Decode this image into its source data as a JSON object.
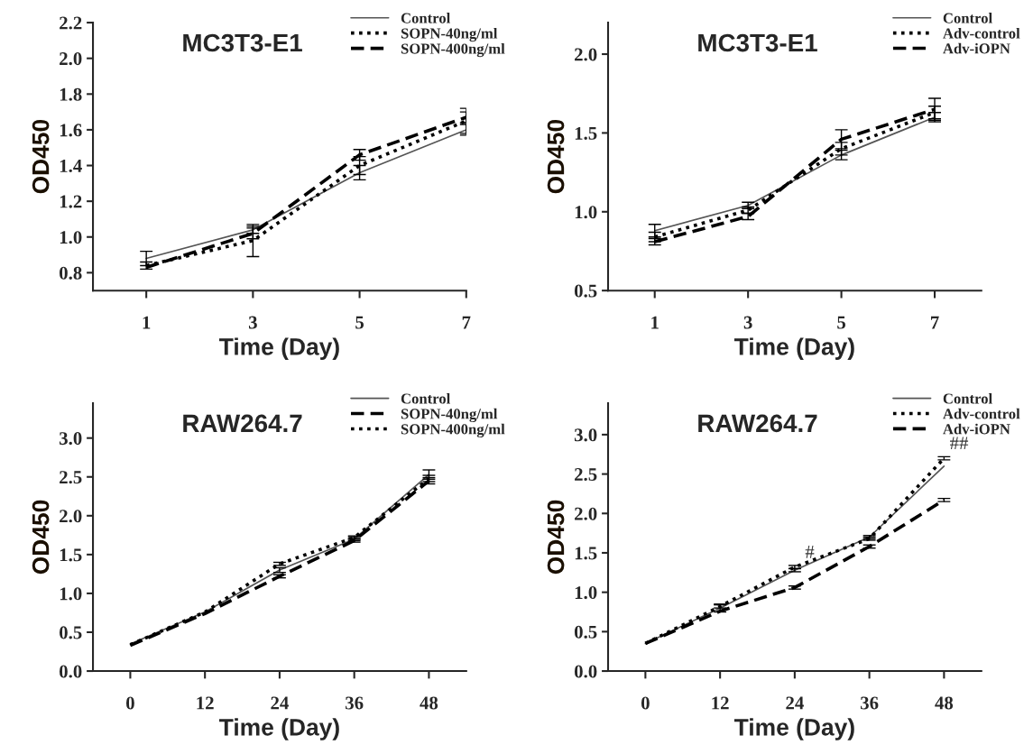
{
  "chart_data": [
    {
      "type": "line",
      "title": "MC3T3-E1",
      "xlabel": "Time (Day)",
      "ylabel": "OD450",
      "x": [
        1,
        3,
        5,
        7
      ],
      "xlim": [
        0,
        7
      ],
      "xticks": [
        1,
        3,
        5,
        7
      ],
      "ylim": [
        0.7,
        2.2
      ],
      "yticks": [
        0.8,
        {
          "value": 1,
          "label": "1.0"
        },
        1.2,
        1.4,
        1.6,
        1.8,
        {
          "value": 2,
          "label": "2.0"
        },
        2.2
      ],
      "legend": "top right",
      "series": [
        {
          "name": "Control",
          "color": "#555555",
          "line_style": "solid",
          "values": [
            0.88,
            1.04,
            1.36,
            1.6
          ],
          "errors": [
            0.04,
            0.02,
            0.04,
            0.03
          ]
        },
        {
          "name": "SOPN-40ng/ml",
          "color": "#000000",
          "line_style": "dotted",
          "values": [
            0.84,
            0.98,
            1.4,
            1.65
          ],
          "errors": [
            0.02,
            0.09,
            0.05,
            0.07
          ]
        },
        {
          "name": "SOPN-400ng/ml",
          "color": "#000000",
          "line_style": "dashed",
          "values": [
            0.83,
            1.02,
            1.46,
            1.67
          ],
          "errors": [
            null,
            0.03,
            0.03,
            0.03
          ]
        }
      ]
    },
    {
      "type": "line",
      "title": "MC3T3-E1",
      "xlabel": "Time (Day)",
      "ylabel": "OD450",
      "x": [
        1,
        3,
        5,
        7
      ],
      "xlim": [
        0,
        8
      ],
      "xticks": [
        1,
        3,
        5,
        7
      ],
      "ylim": [
        0.5,
        2.2
      ],
      "yticks": [
        0.5,
        {
          "value": 1,
          "label": "1.0"
        },
        1.5,
        {
          "value": 2,
          "label": "2.0"
        }
      ],
      "legend": "top right",
      "series": [
        {
          "name": "Control",
          "color": "#555555",
          "line_style": "solid",
          "values": [
            0.88,
            1.04,
            1.36,
            1.6
          ],
          "errors": [
            0.04,
            0.02,
            0.03,
            0.03
          ]
        },
        {
          "name": "Adv-control",
          "color": "#000000",
          "line_style": "dotted",
          "values": [
            0.84,
            1.01,
            1.4,
            1.63
          ],
          "errors": [
            0.03,
            0.02,
            0.04,
            0.04
          ]
        },
        {
          "name": "Adv-iOPN",
          "color": "#000000",
          "line_style": "dashed",
          "values": [
            0.81,
            0.97,
            1.46,
            1.65
          ],
          "errors": [
            0.02,
            0.02,
            0.06,
            0.07
          ]
        }
      ]
    },
    {
      "type": "line",
      "title": "RAW264.7",
      "xlabel": "Time (Day)",
      "ylabel": "OD450",
      "x": [
        0,
        12,
        24,
        36,
        48
      ],
      "xlim": [
        -6,
        54
      ],
      "xticks": [
        0,
        12,
        24,
        36,
        48
      ],
      "ylim": [
        0,
        3.45
      ],
      "yticks": [
        {
          "value": 0,
          "label": "0.0"
        },
        0.5,
        {
          "value": 1,
          "label": "1.0"
        },
        1.5,
        {
          "value": 2,
          "label": "2.0"
        },
        2.5,
        {
          "value": 3,
          "label": "3.0"
        }
      ],
      "legend": "top right",
      "series": [
        {
          "name": "Control",
          "color": "#555555",
          "line_style": "solid",
          "values": [
            0.35,
            0.76,
            1.3,
            1.7,
            2.53
          ],
          "errors": [
            null,
            null,
            0.03,
            0.02,
            0.06
          ]
        },
        {
          "name": "SOPN-40ng/ml",
          "color": "#000000",
          "line_style": "dashed",
          "values": [
            0.33,
            0.74,
            1.22,
            1.68,
            2.45
          ],
          "errors": [
            null,
            null,
            0.02,
            0.02,
            0.04
          ]
        },
        {
          "name": "SOPN-400ng/ml",
          "color": "#000000",
          "line_style": "dotted",
          "values": [
            0.34,
            0.76,
            1.38,
            1.72,
            2.48
          ],
          "errors": [
            null,
            null,
            0.02,
            0.02,
            0.04
          ]
        }
      ]
    },
    {
      "type": "line",
      "title": "RAW264.7",
      "xlabel": "Time (Day)",
      "ylabel": "OD450",
      "x": [
        0,
        12,
        24,
        36,
        48
      ],
      "xlim": [
        -6,
        54
      ],
      "xticks": [
        0,
        12,
        24,
        36,
        48
      ],
      "ylim": [
        0,
        3.4
      ],
      "yticks": [
        {
          "value": 0,
          "label": "0.0"
        },
        0.5,
        {
          "value": 1,
          "label": "1.0"
        },
        1.5,
        {
          "value": 2,
          "label": "2.0"
        },
        2.5,
        {
          "value": 3,
          "label": "3.0"
        }
      ],
      "legend": "top right",
      "annotations": [
        {
          "text": "#",
          "x": 24,
          "y": 1.32
        },
        {
          "text": "##",
          "x": 48,
          "y": 2.7
        }
      ],
      "series": [
        {
          "name": "Control",
          "color": "#555555",
          "line_style": "solid",
          "values": [
            0.35,
            0.8,
            1.28,
            1.7,
            2.6
          ],
          "errors": [
            null,
            0.05,
            0.02,
            0.02,
            null
          ]
        },
        {
          "name": "Adv-control",
          "color": "#000000",
          "line_style": "dotted",
          "values": [
            0.35,
            0.82,
            1.32,
            1.68,
            2.7
          ],
          "errors": [
            null,
            0.02,
            0.02,
            0.02,
            0.02
          ]
        },
        {
          "name": "Adv-iOPN",
          "color": "#000000",
          "line_style": "dashed",
          "values": [
            0.35,
            0.76,
            1.06,
            1.58,
            2.17
          ],
          "errors": [
            null,
            null,
            0.02,
            0.02,
            0.02
          ]
        }
      ]
    }
  ]
}
